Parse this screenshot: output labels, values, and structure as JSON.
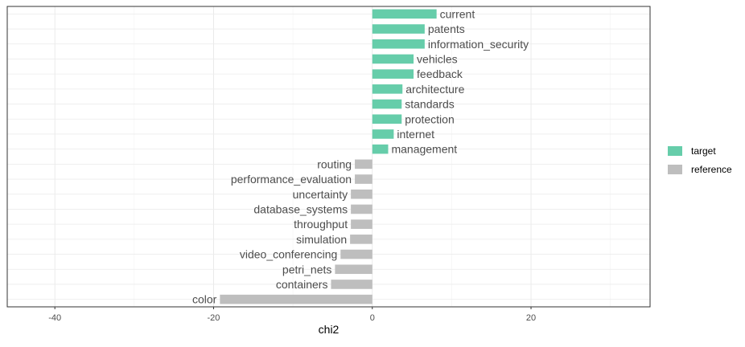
{
  "chart_data": {
    "type": "bar",
    "orientation": "horizontal",
    "xlabel": "chi2",
    "ylabel": "",
    "xlim": [
      -46,
      35
    ],
    "xticks": [
      -40,
      -20,
      0,
      20
    ],
    "grid": true,
    "legend_position": "right",
    "legend": [
      {
        "name": "target",
        "color": "#66cdaa"
      },
      {
        "name": "reference",
        "color": "#bebebe"
      }
    ],
    "bars": [
      {
        "label": "current",
        "value": 8.1,
        "group": "target"
      },
      {
        "label": "patents",
        "value": 6.6,
        "group": "target"
      },
      {
        "label": "information_security",
        "value": 6.6,
        "group": "target"
      },
      {
        "label": "vehicles",
        "value": 5.2,
        "group": "target"
      },
      {
        "label": "feedback",
        "value": 5.2,
        "group": "target"
      },
      {
        "label": "architecture",
        "value": 3.8,
        "group": "target"
      },
      {
        "label": "standards",
        "value": 3.7,
        "group": "target"
      },
      {
        "label": "protection",
        "value": 3.7,
        "group": "target"
      },
      {
        "label": "internet",
        "value": 2.7,
        "group": "target"
      },
      {
        "label": "management",
        "value": 2.0,
        "group": "target"
      },
      {
        "label": "routing",
        "value": -2.2,
        "group": "reference"
      },
      {
        "label": "performance_evaluation",
        "value": -2.2,
        "group": "reference"
      },
      {
        "label": "uncertainty",
        "value": -2.7,
        "group": "reference"
      },
      {
        "label": "database_systems",
        "value": -2.7,
        "group": "reference"
      },
      {
        "label": "throughput",
        "value": -2.7,
        "group": "reference"
      },
      {
        "label": "simulation",
        "value": -2.8,
        "group": "reference"
      },
      {
        "label": "video_conferencing",
        "value": -4.0,
        "group": "reference"
      },
      {
        "label": "petri_nets",
        "value": -4.7,
        "group": "reference"
      },
      {
        "label": "containers",
        "value": -5.2,
        "group": "reference"
      },
      {
        "label": "color",
        "value": -19.2,
        "group": "reference"
      }
    ]
  }
}
